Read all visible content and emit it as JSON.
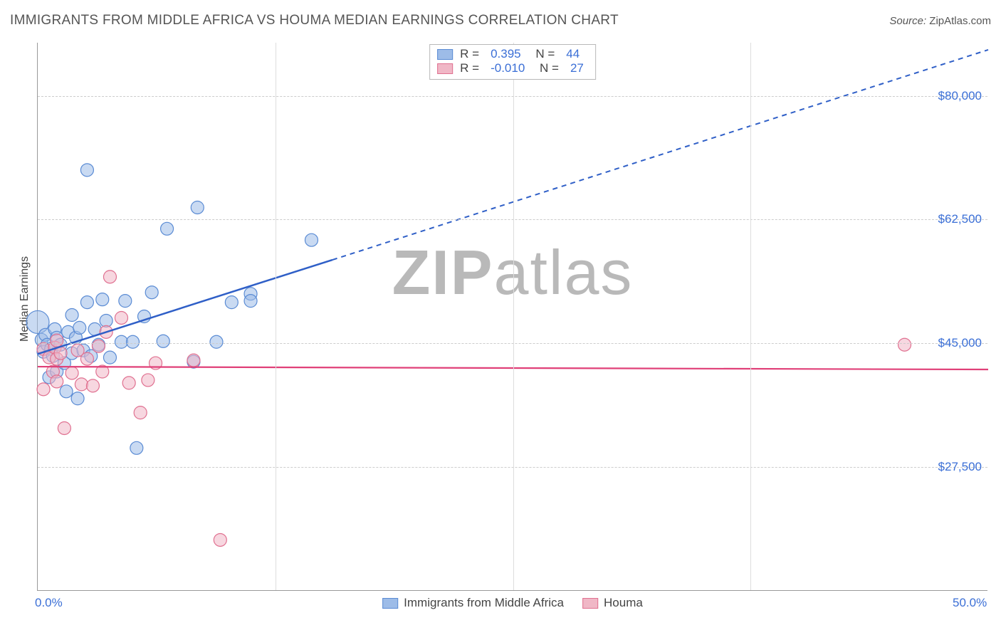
{
  "title": "IMMIGRANTS FROM MIDDLE AFRICA VS HOUMA MEDIAN EARNINGS CORRELATION CHART",
  "source_label": "Source:",
  "source_value": "ZipAtlas.com",
  "ylabel": "Median Earnings",
  "watermark_a": "ZIP",
  "watermark_b": "atlas",
  "chart": {
    "type": "scatter",
    "xlim": [
      0,
      50
    ],
    "ylim": [
      10000,
      87500
    ],
    "x_ticks": [
      0.0,
      50.0
    ],
    "x_tick_labels": [
      "0.0%",
      "50.0%"
    ],
    "x_minor_ticks": [
      12.5,
      25.0,
      37.5
    ],
    "y_ticks": [
      27500,
      45000,
      62500,
      80000
    ],
    "y_tick_labels": [
      "$27,500",
      "$45,000",
      "$62,500",
      "$80,000"
    ],
    "background_color": "#ffffff",
    "grid_color": "#cccccc",
    "axis_color": "#999999",
    "tick_label_color": "#3b6fd6",
    "series": [
      {
        "name": "Immigrants from Middle Africa",
        "color_fill": "#9dbce8",
        "color_stroke": "#5a8bd4",
        "fill_opacity": 0.55,
        "marker_radius": 9,
        "R": "0.395",
        "N": "44",
        "trend": {
          "solid": {
            "x1": 0,
            "y1": 43500,
            "x2": 15.5,
            "y2": 56800
          },
          "dashed": {
            "x1": 15.5,
            "y1": 56800,
            "x2": 50,
            "y2": 86500
          },
          "color": "#2f5fc7",
          "width": 2.5
        },
        "points": [
          {
            "x": 0.0,
            "y": 48000,
            "r": 16
          },
          {
            "x": 0.2,
            "y": 45500
          },
          {
            "x": 0.3,
            "y": 43800
          },
          {
            "x": 0.4,
            "y": 46200
          },
          {
            "x": 0.5,
            "y": 44800
          },
          {
            "x": 0.6,
            "y": 40200
          },
          {
            "x": 0.7,
            "y": 44200
          },
          {
            "x": 0.8,
            "y": 43200
          },
          {
            "x": 0.9,
            "y": 47000
          },
          {
            "x": 1.0,
            "y": 45800
          },
          {
            "x": 1.0,
            "y": 41000
          },
          {
            "x": 1.2,
            "y": 44800
          },
          {
            "x": 1.4,
            "y": 42200
          },
          {
            "x": 1.5,
            "y": 38200
          },
          {
            "x": 1.6,
            "y": 46600
          },
          {
            "x": 1.8,
            "y": 43600
          },
          {
            "x": 1.8,
            "y": 49000
          },
          {
            "x": 2.0,
            "y": 45800
          },
          {
            "x": 2.1,
            "y": 37200
          },
          {
            "x": 2.2,
            "y": 47200
          },
          {
            "x": 2.4,
            "y": 44000
          },
          {
            "x": 2.6,
            "y": 50800
          },
          {
            "x": 2.8,
            "y": 43200
          },
          {
            "x": 3.0,
            "y": 47000
          },
          {
            "x": 3.2,
            "y": 44800
          },
          {
            "x": 3.4,
            "y": 51200
          },
          {
            "x": 3.6,
            "y": 48200
          },
          {
            "x": 3.8,
            "y": 43000
          },
          {
            "x": 4.4,
            "y": 45200
          },
          {
            "x": 4.6,
            "y": 51000
          },
          {
            "x": 5.0,
            "y": 45200
          },
          {
            "x": 5.2,
            "y": 30200
          },
          {
            "x": 5.6,
            "y": 48800
          },
          {
            "x": 6.0,
            "y": 52200
          },
          {
            "x": 6.6,
            "y": 45300
          },
          {
            "x": 6.8,
            "y": 61200
          },
          {
            "x": 2.6,
            "y": 69500
          },
          {
            "x": 8.4,
            "y": 64200
          },
          {
            "x": 9.4,
            "y": 45200
          },
          {
            "x": 10.2,
            "y": 50800
          },
          {
            "x": 11.2,
            "y": 52000
          },
          {
            "x": 11.2,
            "y": 51000
          },
          {
            "x": 14.4,
            "y": 59600
          },
          {
            "x": 8.2,
            "y": 42400
          }
        ]
      },
      {
        "name": "Houma",
        "color_fill": "#f0b7c6",
        "color_stroke": "#e07090",
        "fill_opacity": 0.55,
        "marker_radius": 9,
        "R": "-0.010",
        "N": "27",
        "trend": {
          "solid": {
            "x1": 0,
            "y1": 41700,
            "x2": 50,
            "y2": 41300
          },
          "color": "#e04078",
          "width": 2.2
        },
        "points": [
          {
            "x": 0.3,
            "y": 44200
          },
          {
            "x": 0.3,
            "y": 38500
          },
          {
            "x": 0.6,
            "y": 43000
          },
          {
            "x": 0.8,
            "y": 41000
          },
          {
            "x": 0.9,
            "y": 44400
          },
          {
            "x": 1.0,
            "y": 42800
          },
          {
            "x": 1.0,
            "y": 45400
          },
          {
            "x": 1.0,
            "y": 39600
          },
          {
            "x": 1.2,
            "y": 43600
          },
          {
            "x": 1.4,
            "y": 33000
          },
          {
            "x": 1.8,
            "y": 40800
          },
          {
            "x": 2.1,
            "y": 44000
          },
          {
            "x": 2.3,
            "y": 39200
          },
          {
            "x": 2.6,
            "y": 42800
          },
          {
            "x": 2.9,
            "y": 39000
          },
          {
            "x": 3.2,
            "y": 44600
          },
          {
            "x": 3.4,
            "y": 41000
          },
          {
            "x": 3.6,
            "y": 46600
          },
          {
            "x": 3.8,
            "y": 54400
          },
          {
            "x": 4.4,
            "y": 48600
          },
          {
            "x": 4.8,
            "y": 39400
          },
          {
            "x": 5.4,
            "y": 35200
          },
          {
            "x": 5.8,
            "y": 39800
          },
          {
            "x": 6.2,
            "y": 42200
          },
          {
            "x": 8.2,
            "y": 42600
          },
          {
            "x": 9.6,
            "y": 17200
          },
          {
            "x": 45.6,
            "y": 44800
          }
        ]
      }
    ]
  }
}
